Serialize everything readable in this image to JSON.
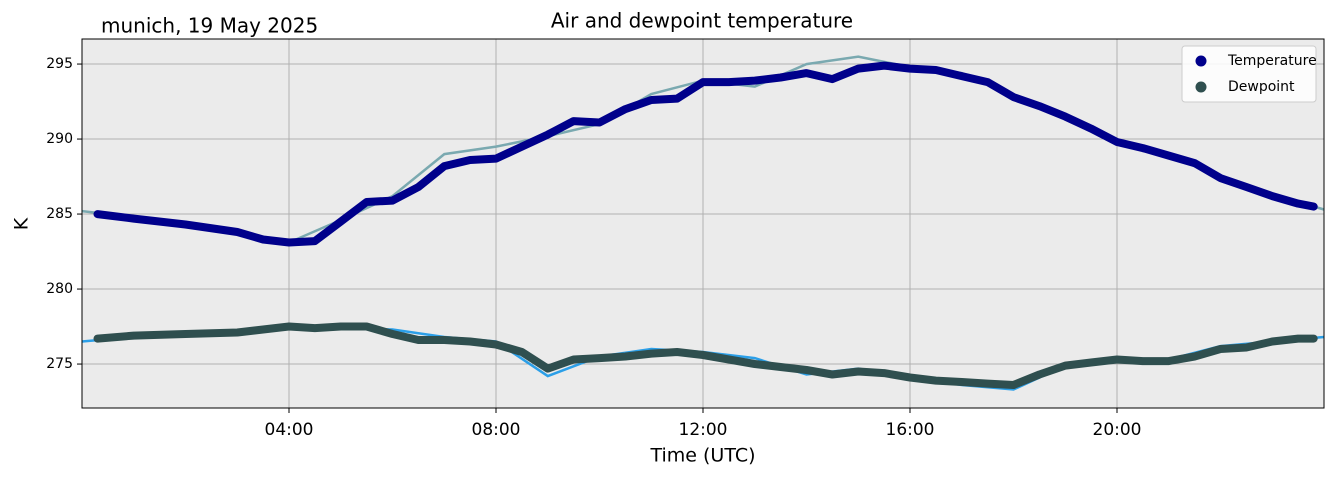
{
  "chart_data": {
    "type": "line",
    "title": "Air and dewpoint temperature",
    "subtitle": "munich, 19 May 2025",
    "x_label": "Time (UTC)",
    "y_label": "K",
    "x": [
      0.3,
      1,
      2,
      3,
      3.5,
      4,
      4.5,
      5,
      5.5,
      6,
      6.5,
      7,
      7.5,
      8,
      8.5,
      9,
      9.5,
      10,
      10.5,
      11,
      11.5,
      12,
      12.5,
      13,
      13.5,
      14,
      14.5,
      15,
      15.5,
      16,
      16.5,
      17,
      17.5,
      18,
      18.5,
      19,
      19.5,
      20,
      20.5,
      21,
      21.5,
      22,
      22.5,
      23,
      23.5,
      23.8
    ],
    "series": [
      {
        "name": "Temperature",
        "color": "#00008b",
        "values": [
          285.0,
          284.7,
          284.3,
          283.8,
          283.3,
          283.1,
          283.2,
          284.5,
          285.8,
          285.9,
          286.8,
          288.2,
          288.6,
          288.7,
          289.5,
          290.3,
          291.2,
          291.1,
          292.0,
          292.6,
          292.7,
          293.8,
          293.8,
          293.9,
          294.1,
          294.4,
          294.0,
          294.7,
          294.9,
          294.7,
          294.6,
          294.2,
          293.8,
          292.8,
          292.2,
          291.5,
          290.7,
          289.8,
          289.4,
          288.9,
          288.4,
          287.4,
          286.8,
          286.2,
          285.7,
          285.5
        ]
      },
      {
        "name": "Dewpoint",
        "color": "#2f4f4f",
        "values": [
          276.7,
          276.9,
          277.0,
          277.1,
          277.3,
          277.5,
          277.4,
          277.5,
          277.5,
          277.0,
          276.6,
          276.6,
          276.5,
          276.3,
          275.8,
          274.7,
          275.3,
          275.4,
          275.5,
          275.7,
          275.8,
          275.6,
          275.3,
          275.0,
          274.8,
          274.6,
          274.3,
          274.5,
          274.4,
          274.1,
          273.9,
          273.8,
          273.7,
          273.6,
          274.3,
          274.9,
          275.1,
          275.3,
          275.2,
          275.2,
          275.5,
          276.0,
          276.1,
          276.5,
          276.7,
          276.7
        ]
      }
    ],
    "raw_series": [
      {
        "color": "#7aa9b0",
        "x": [
          0,
          1,
          2,
          3,
          4,
          5,
          6,
          7,
          8,
          9,
          10,
          11,
          12,
          13,
          14,
          15,
          16,
          17,
          18,
          19,
          20,
          21,
          22,
          23,
          24
        ],
        "values": [
          285.2,
          284.8,
          284.3,
          283.8,
          283.1,
          284.6,
          286.2,
          289.0,
          289.5,
          290.2,
          291.0,
          293.0,
          293.9,
          293.5,
          295.0,
          295.5,
          294.8,
          294.4,
          292.9,
          291.6,
          289.8,
          288.9,
          287.5,
          286.3,
          285.3
        ]
      },
      {
        "color": "#2b9fe8",
        "x": [
          0,
          1,
          2,
          3,
          4,
          5,
          6,
          7,
          8,
          9,
          10,
          11,
          12,
          13,
          14,
          15,
          16,
          17,
          18,
          19,
          20,
          21,
          22,
          23,
          24
        ],
        "values": [
          276.5,
          276.8,
          277.0,
          277.1,
          277.5,
          277.4,
          277.3,
          276.8,
          276.5,
          274.2,
          275.5,
          276.0,
          275.8,
          275.4,
          274.3,
          274.7,
          274.1,
          273.6,
          273.3,
          274.9,
          275.4,
          275.3,
          276.2,
          276.5,
          276.8
        ]
      }
    ],
    "xlim": [
      0,
      24
    ],
    "xticks": [
      {
        "value": 4,
        "label": "04:00"
      },
      {
        "value": 8,
        "label": "08:00"
      },
      {
        "value": 12,
        "label": "12:00"
      },
      {
        "value": 16,
        "label": "16:00"
      },
      {
        "value": 20,
        "label": "20:00"
      }
    ],
    "ylim": [
      272.07,
      296.67
    ],
    "yticks": [
      275,
      280,
      285,
      290,
      295
    ],
    "grid": true,
    "legend": "upper right"
  }
}
